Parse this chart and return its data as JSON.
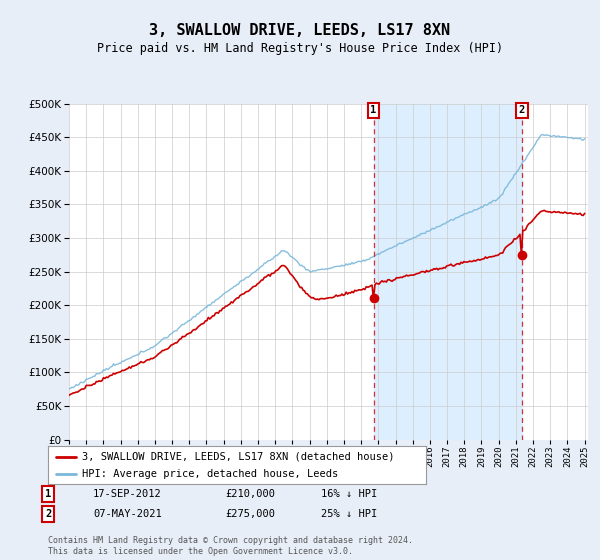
{
  "title": "3, SWALLOW DRIVE, LEEDS, LS17 8XN",
  "subtitle": "Price paid vs. HM Land Registry's House Price Index (HPI)",
  "ylim": [
    0,
    500000
  ],
  "yticks": [
    0,
    50000,
    100000,
    150000,
    200000,
    250000,
    300000,
    350000,
    400000,
    450000,
    500000
  ],
  "x_start_year": 1995,
  "x_end_year": 2025,
  "hpi_color": "#7ab8d9",
  "price_color": "#cc0000",
  "vline_color": "#cc0000",
  "shade_color": "#ddeeff",
  "legend_label1": "3, SWALLOW DRIVE, LEEDS, LS17 8XN (detached house)",
  "legend_label2": "HPI: Average price, detached house, Leeds",
  "note1_date": "17-SEP-2012",
  "note1_price": "£210,000",
  "note1_hpi": "16% ↓ HPI",
  "note2_date": "07-MAY-2021",
  "note2_price": "£275,000",
  "note2_hpi": "25% ↓ HPI",
  "footer": "Contains HM Land Registry data © Crown copyright and database right 2024.\nThis data is licensed under the Open Government Licence v3.0.",
  "background_color": "#e8eef8",
  "plot_bg_color": "#ffffff",
  "sale1_year": 2012.72,
  "sale2_year": 2021.35,
  "sale1_price": 210000,
  "sale2_price": 275000
}
